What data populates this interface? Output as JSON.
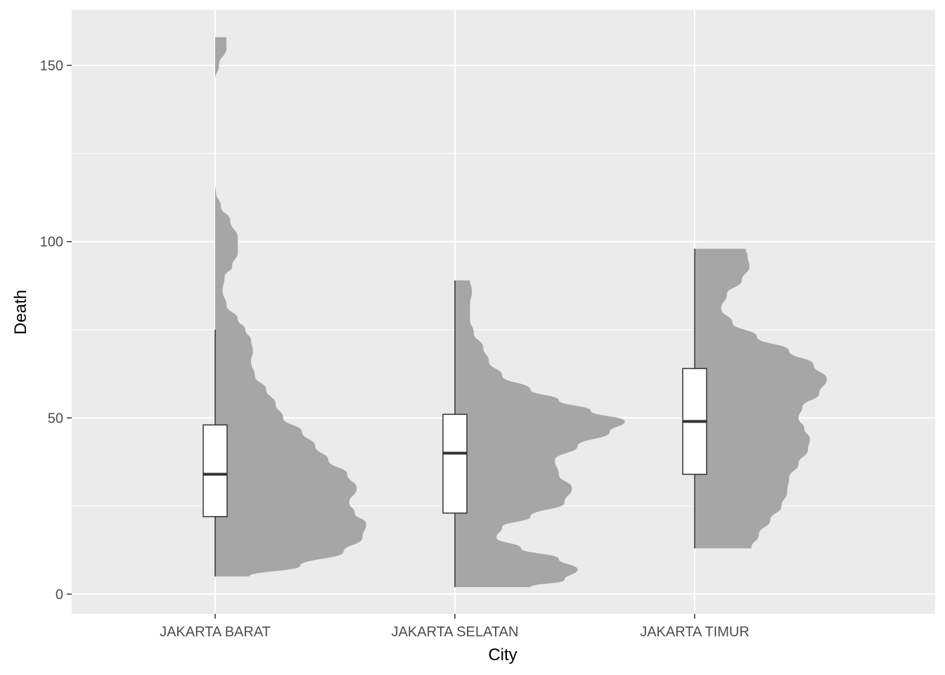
{
  "chart_data": {
    "type": "half-violin-boxplot",
    "xlabel": "City",
    "ylabel": "Death",
    "ylim": [
      -6,
      163
    ],
    "y_ticks": [
      0,
      50,
      100,
      150
    ],
    "grid": true,
    "panel_color": "#ebebeb",
    "violin_color": "#a6a6a6",
    "categories": [
      "JAKARTA BARAT",
      "JAKARTA SELATAN",
      "JAKARTA TIMUR"
    ],
    "series": [
      {
        "category": "JAKARTA BARAT",
        "box": {
          "min": 5,
          "q1": 22,
          "median": 34,
          "q3": 48,
          "max": 75
        },
        "density": [
          [
            5,
            0.18
          ],
          [
            8,
            0.45
          ],
          [
            12,
            0.68
          ],
          [
            16,
            0.78
          ],
          [
            20,
            0.8
          ],
          [
            23,
            0.74
          ],
          [
            26,
            0.71
          ],
          [
            30,
            0.75
          ],
          [
            34,
            0.7
          ],
          [
            38,
            0.6
          ],
          [
            42,
            0.53
          ],
          [
            46,
            0.46
          ],
          [
            50,
            0.36
          ],
          [
            54,
            0.32
          ],
          [
            58,
            0.27
          ],
          [
            62,
            0.21
          ],
          [
            66,
            0.19
          ],
          [
            69,
            0.2
          ],
          [
            72,
            0.19
          ],
          [
            75,
            0.16
          ],
          [
            78,
            0.12
          ],
          [
            82,
            0.06
          ],
          [
            86,
            0.04
          ],
          [
            90,
            0.05
          ],
          [
            93,
            0.09
          ],
          [
            97,
            0.12
          ],
          [
            101,
            0.12
          ],
          [
            106,
            0.08
          ],
          [
            110,
            0.03
          ],
          [
            114,
            0.005
          ],
          [
            116,
            0.0
          ],
          [
            146,
            0.0
          ],
          [
            150,
            0.02
          ],
          [
            155,
            0.06
          ],
          [
            158,
            0.06
          ]
        ]
      },
      {
        "category": "JAKARTA SELATAN",
        "box": {
          "min": 2,
          "q1": 23,
          "median": 40,
          "q3": 51,
          "max": 89
        },
        "density": [
          [
            2,
            0.4
          ],
          [
            4,
            0.58
          ],
          [
            7,
            0.65
          ],
          [
            10,
            0.55
          ],
          [
            13,
            0.35
          ],
          [
            16,
            0.22
          ],
          [
            19,
            0.25
          ],
          [
            22,
            0.4
          ],
          [
            26,
            0.58
          ],
          [
            30,
            0.62
          ],
          [
            34,
            0.55
          ],
          [
            38,
            0.53
          ],
          [
            42,
            0.65
          ],
          [
            46,
            0.82
          ],
          [
            49,
            0.9
          ],
          [
            52,
            0.72
          ],
          [
            55,
            0.55
          ],
          [
            58,
            0.4
          ],
          [
            62,
            0.25
          ],
          [
            66,
            0.18
          ],
          [
            70,
            0.15
          ],
          [
            74,
            0.1
          ],
          [
            78,
            0.08
          ],
          [
            82,
            0.08
          ],
          [
            86,
            0.09
          ],
          [
            89,
            0.08
          ]
        ]
      },
      {
        "category": "JAKARTA TIMUR",
        "box": {
          "min": 13,
          "q1": 34,
          "median": 49,
          "q3": 64,
          "max": 98
        },
        "density": [
          [
            13,
            0.3
          ],
          [
            17,
            0.34
          ],
          [
            21,
            0.4
          ],
          [
            25,
            0.46
          ],
          [
            29,
            0.49
          ],
          [
            33,
            0.5
          ],
          [
            37,
            0.55
          ],
          [
            41,
            0.6
          ],
          [
            44,
            0.61
          ],
          [
            47,
            0.58
          ],
          [
            50,
            0.55
          ],
          [
            53,
            0.57
          ],
          [
            57,
            0.66
          ],
          [
            61,
            0.7
          ],
          [
            65,
            0.63
          ],
          [
            69,
            0.5
          ],
          [
            73,
            0.33
          ],
          [
            77,
            0.2
          ],
          [
            81,
            0.14
          ],
          [
            85,
            0.17
          ],
          [
            89,
            0.25
          ],
          [
            93,
            0.29
          ],
          [
            96,
            0.28
          ],
          [
            98,
            0.27
          ]
        ]
      }
    ]
  }
}
